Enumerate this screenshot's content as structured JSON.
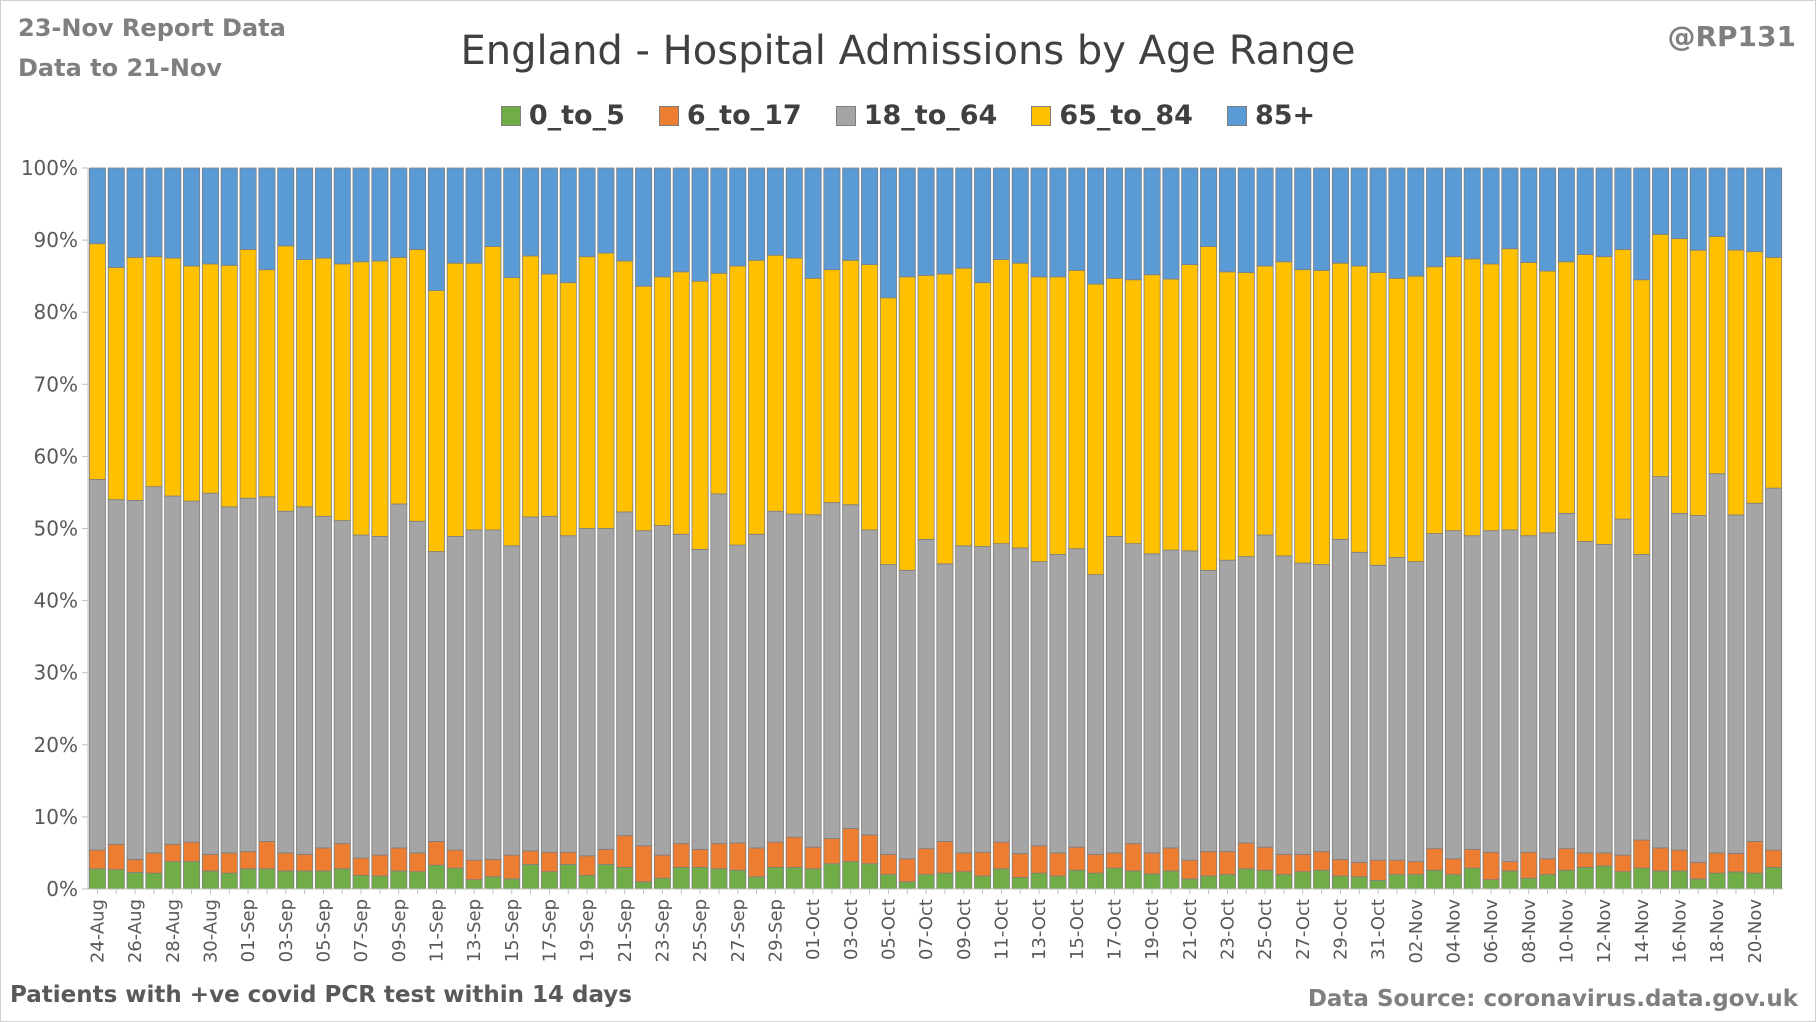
{
  "header": {
    "report_line1": "23-Nov Report Data",
    "report_line2": "Data to 21-Nov",
    "handle": "@RP131"
  },
  "footer": {
    "left_note": "Patients with  +ve covid PCR test within 14 days",
    "source": "Data Source: coronavirus.data.gov.uk"
  },
  "chart_data": {
    "type": "bar",
    "stacked": true,
    "percent_stacked": true,
    "title": "England - Hospital Admissions by Age Range",
    "xlabel": "",
    "ylabel": "",
    "ylim": [
      0,
      100
    ],
    "yticks": [
      "0%",
      "10%",
      "20%",
      "30%",
      "40%",
      "50%",
      "60%",
      "70%",
      "80%",
      "90%",
      "100%"
    ],
    "grid": false,
    "legend": "top",
    "start_date": "2021-08-24",
    "categories": [
      "24-Aug",
      "25-Aug",
      "26-Aug",
      "27-Aug",
      "28-Aug",
      "29-Aug",
      "30-Aug",
      "31-Aug",
      "01-Sep",
      "02-Sep",
      "03-Sep",
      "04-Sep",
      "05-Sep",
      "06-Sep",
      "07-Sep",
      "08-Sep",
      "09-Sep",
      "10-Sep",
      "11-Sep",
      "12-Sep",
      "13-Sep",
      "14-Sep",
      "15-Sep",
      "16-Sep",
      "17-Sep",
      "18-Sep",
      "19-Sep",
      "20-Sep",
      "21-Sep",
      "22-Sep",
      "23-Sep",
      "24-Sep",
      "25-Sep",
      "26-Sep",
      "27-Sep",
      "28-Sep",
      "29-Sep",
      "30-Sep",
      "01-Oct",
      "02-Oct",
      "03-Oct",
      "04-Oct",
      "05-Oct",
      "06-Oct",
      "07-Oct",
      "08-Oct",
      "09-Oct",
      "10-Oct",
      "11-Oct",
      "12-Oct",
      "13-Oct",
      "14-Oct",
      "15-Oct",
      "16-Oct",
      "17-Oct",
      "18-Oct",
      "19-Oct",
      "20-Oct",
      "21-Oct",
      "22-Oct",
      "23-Oct",
      "24-Oct",
      "25-Oct",
      "26-Oct",
      "27-Oct",
      "28-Oct",
      "29-Oct",
      "30-Oct",
      "31-Oct",
      "01-Nov",
      "02-Nov",
      "03-Nov",
      "04-Nov",
      "05-Nov",
      "06-Nov",
      "07-Nov",
      "08-Nov",
      "09-Nov",
      "10-Nov",
      "11-Nov",
      "12-Nov",
      "13-Nov",
      "14-Nov",
      "15-Nov",
      "16-Nov",
      "17-Nov",
      "18-Nov",
      "19-Nov",
      "20-Nov",
      "21-Nov"
    ],
    "x_tick_labels": [
      "24-Aug",
      "",
      "26-Aug",
      "",
      "28-Aug",
      "",
      "30-Aug",
      "",
      "01-Sep",
      "",
      "03-Sep",
      "",
      "05-Sep",
      "",
      "07-Sep",
      "",
      "09-Sep",
      "",
      "11-Sep",
      "",
      "13-Sep",
      "",
      "15-Sep",
      "",
      "17-Sep",
      "",
      "19-Sep",
      "",
      "21-Sep",
      "",
      "23-Sep",
      "",
      "25-Sep",
      "",
      "27-Sep",
      "",
      "29-Sep",
      "",
      "01-Oct",
      "",
      "03-Oct",
      "",
      "05-Oct",
      "",
      "07-Oct",
      "",
      "09-Oct",
      "",
      "11-Oct",
      "",
      "13-Oct",
      "",
      "15-Oct",
      "",
      "17-Oct",
      "",
      "19-Oct",
      "",
      "21-Oct",
      "",
      "23-Oct",
      "",
      "25-Oct",
      "",
      "27-Oct",
      "",
      "29-Oct",
      "",
      "31-Oct",
      "",
      "02-Nov",
      "",
      "04-Nov",
      "",
      "06-Nov",
      "",
      "08-Nov",
      "",
      "10-Nov",
      "",
      "12-Nov",
      "",
      "14-Nov",
      "",
      "16-Nov",
      "",
      "18-Nov",
      "",
      "20-Nov",
      ""
    ],
    "series": [
      {
        "name": "0_to_5",
        "color": "#70ad47",
        "values": [
          2.8,
          2.7,
          2.3,
          2.2,
          3.8,
          3.8,
          2.5,
          2.2,
          2.8,
          2.8,
          2.5,
          2.5,
          2.5,
          2.8,
          1.9,
          1.8,
          2.5,
          2.4,
          3.3,
          2.9,
          1.3,
          1.7,
          1.4,
          3.4,
          2.4,
          3.4,
          1.9,
          3.4,
          3.0,
          1.0,
          1.5,
          3.0,
          3.0,
          2.8,
          2.6,
          1.7,
          3.0,
          3.0,
          2.8,
          3.5,
          3.8,
          3.5,
          2.0,
          1.0,
          2.0,
          2.2,
          2.4,
          1.8,
          2.8,
          1.6,
          2.2,
          1.8,
          2.6,
          2.2,
          2.9,
          2.5,
          2.1,
          2.5,
          1.4,
          1.8,
          2.0,
          2.8,
          2.6,
          2.0,
          2.4,
          2.6,
          1.8,
          1.7,
          1.2,
          2.0,
          2.0,
          2.6,
          2.0,
          2.9,
          1.3,
          2.5,
          1.5,
          2.0,
          2.6,
          3.0,
          3.2,
          2.4,
          2.9,
          2.5,
          2.5,
          1.4,
          2.2,
          2.4,
          2.2,
          3.0
        ]
      },
      {
        "name": "6_to_17",
        "color": "#ed7d31",
        "values": [
          2.6,
          3.5,
          1.8,
          2.8,
          2.4,
          2.7,
          2.3,
          2.8,
          2.4,
          3.8,
          2.5,
          2.3,
          3.2,
          3.5,
          2.4,
          2.9,
          3.2,
          2.6,
          3.3,
          2.5,
          2.7,
          2.4,
          3.3,
          1.9,
          2.7,
          1.7,
          2.7,
          2.1,
          4.4,
          5.0,
          3.2,
          3.3,
          2.5,
          3.5,
          3.8,
          4.0,
          3.5,
          4.2,
          3.0,
          3.5,
          4.6,
          4.0,
          2.8,
          3.2,
          3.6,
          4.4,
          2.6,
          3.3,
          3.7,
          3.3,
          3.8,
          3.2,
          3.2,
          2.6,
          2.1,
          3.8,
          2.9,
          3.2,
          2.6,
          3.4,
          3.2,
          3.6,
          3.2,
          2.8,
          2.4,
          2.6,
          2.3,
          2.0,
          2.8,
          2.0,
          1.8,
          3.0,
          2.2,
          2.6,
          3.8,
          1.3,
          3.6,
          2.2,
          3.0,
          2.0,
          1.8,
          2.3,
          3.9,
          3.2,
          2.9,
          2.3,
          2.8,
          2.6,
          4.4,
          2.4
        ]
      },
      {
        "name": "18_to_64",
        "color": "#a5a5a5",
        "values": [
          51.4,
          47.8,
          49.8,
          50.8,
          48.3,
          47.3,
          50.1,
          48.0,
          49.0,
          47.8,
          47.4,
          48.2,
          46.0,
          44.8,
          44.8,
          44.2,
          47.7,
          46.0,
          40.2,
          43.5,
          45.8,
          45.7,
          42.9,
          46.3,
          46.6,
          43.9,
          45.4,
          44.5,
          44.9,
          43.7,
          45.7,
          42.9,
          41.6,
          48.5,
          41.3,
          43.5,
          45.9,
          44.8,
          46.1,
          46.6,
          44.9,
          42.3,
          40.2,
          40.0,
          42.9,
          38.5,
          42.6,
          42.4,
          41.4,
          42.4,
          39.4,
          41.4,
          41.4,
          38.8,
          43.9,
          41.6,
          41.5,
          41.3,
          42.9,
          39.0,
          40.4,
          39.7,
          43.3,
          41.4,
          40.4,
          39.8,
          44.4,
          43.0,
          40.9,
          42.0,
          41.6,
          43.7,
          45.5,
          43.5,
          44.6,
          46.0,
          43.9,
          45.2,
          46.5,
          43.2,
          42.8,
          46.6,
          39.6,
          51.5,
          46.7,
          48.1,
          52.6,
          47.4,
          46.9,
          50.2
        ]
      },
      {
        "name": "65_to_84",
        "color": "#ffc000",
        "values": [
          32.7,
          32.2,
          33.7,
          31.9,
          33.0,
          32.6,
          31.8,
          33.5,
          34.5,
          31.5,
          36.8,
          34.3,
          35.8,
          35.6,
          37.9,
          38.2,
          34.2,
          37.7,
          36.2,
          37.9,
          37.0,
          39.3,
          37.2,
          36.2,
          33.6,
          35.1,
          37.7,
          38.2,
          34.8,
          33.9,
          34.5,
          36.4,
          37.2,
          30.6,
          38.7,
          38.0,
          35.5,
          35.5,
          32.8,
          32.3,
          33.9,
          36.8,
          37.0,
          40.7,
          36.6,
          40.2,
          38.5,
          36.6,
          39.4,
          39.5,
          39.5,
          38.5,
          38.6,
          40.3,
          35.8,
          36.6,
          38.7,
          37.6,
          39.7,
          44.9,
          40.0,
          39.4,
          37.3,
          40.8,
          40.7,
          40.8,
          38.3,
          39.7,
          40.6,
          38.7,
          39.6,
          37.0,
          38.0,
          38.4,
          37.0,
          39.0,
          37.9,
          36.3,
          34.9,
          39.8,
          39.9,
          37.4,
          38.1,
          33.6,
          38.1,
          36.8,
          32.9,
          37.1,
          34.9,
          32.0
        ]
      },
      {
        "name": "85+",
        "color": "#5b9bd5",
        "values": [
          10.5,
          13.8,
          12.4,
          12.3,
          12.5,
          13.6,
          13.3,
          13.5,
          11.3,
          14.1,
          10.8,
          12.7,
          12.5,
          13.3,
          13.0,
          12.9,
          12.4,
          11.3,
          17.0,
          13.2,
          13.2,
          10.9,
          15.2,
          12.2,
          14.7,
          15.9,
          12.3,
          11.8,
          12.9,
          16.4,
          15.1,
          14.4,
          15.7,
          14.6,
          13.6,
          12.8,
          12.1,
          12.5,
          15.3,
          14.1,
          12.8,
          13.4,
          18.0,
          15.1,
          14.9,
          14.7,
          13.9,
          15.9,
          12.7,
          13.2,
          15.1,
          15.1,
          14.2,
          16.1,
          15.3,
          15.5,
          14.8,
          15.4,
          13.4,
          10.9,
          14.4,
          14.5,
          13.6,
          13.0,
          14.1,
          14.2,
          13.2,
          13.6,
          14.5,
          15.3,
          15.0,
          13.7,
          12.3,
          12.6,
          13.3,
          11.2,
          13.1,
          14.3,
          13.0,
          12.0,
          12.3,
          11.3,
          15.5,
          9.2,
          9.8,
          11.4,
          9.5,
          11.5,
          11.6,
          12.4
        ]
      }
    ]
  }
}
